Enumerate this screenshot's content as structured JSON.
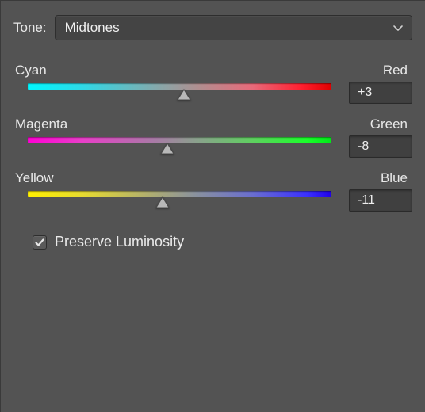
{
  "colors": {
    "panel_bg": "#535353",
    "dropdown_bg": "#444444",
    "input_bg": "#404040",
    "text": "#e8e8e8",
    "thumb_fill": "#b8b8b8",
    "thumb_stroke": "#4a4a4a"
  },
  "tone": {
    "label": "Tone:",
    "selected": "Midtones"
  },
  "sliders": {
    "range": {
      "min": -100,
      "max": 100
    },
    "items": [
      {
        "left_label": "Cyan",
        "right_label": "Red",
        "value": 3,
        "display": "+3",
        "gradient": "linear-gradient(to right, #00f7ff 0%, #2fd9e6 18%, #8aa6a8 44%, #b08f90 56%, #e86a7a 74%, #ff2030 90%, #e00000 100%)"
      },
      {
        "left_label": "Magenta",
        "right_label": "Green",
        "value": -8,
        "display": "-8",
        "gradient": "linear-gradient(to right, #ff00d4 0%, #e83fc8 18%, #a87ba6 42%, #8aa28c 56%, #5fd060 74%, #1aff2a 92%, #00e818 100%)"
      },
      {
        "left_label": "Yellow",
        "right_label": "Blue",
        "value": -11,
        "display": "-11",
        "gradient": "linear-gradient(to right, #fff000 0%, #e6da30 18%, #b0ae70 40%, #8890a0 56%, #6a6ed0 74%, #3a30ff 92%, #2000e8 100%)"
      }
    ]
  },
  "preserve": {
    "checked": true,
    "label": "Preserve Luminosity"
  }
}
